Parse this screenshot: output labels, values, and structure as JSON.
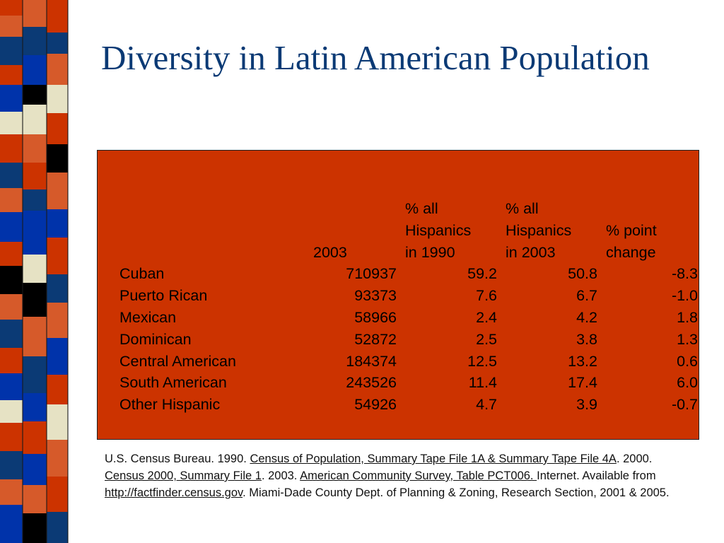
{
  "slide": {
    "title": "Diversity in Latin American Population"
  },
  "table": {
    "headers": {
      "col_2003": "2003",
      "pct1990": [
        "% all",
        "Hispanics",
        "in 1990"
      ],
      "pct2003": [
        "% all",
        "Hispanics",
        "in 2003"
      ],
      "change": [
        "% point",
        "change"
      ]
    },
    "rows": [
      {
        "group": "Cuban",
        "pop2003": "710937",
        "pct1990": "59.2",
        "pct2003": "50.8",
        "change": "-8.3"
      },
      {
        "group": "Puerto Rican",
        "pop2003": "93373",
        "pct1990": "7.6",
        "pct2003": "6.7",
        "change": "-1.0"
      },
      {
        "group": "Mexican",
        "pop2003": "58966",
        "pct1990": "2.4",
        "pct2003": "4.2",
        "change": "1.8"
      },
      {
        "group": "Dominican",
        "pop2003": "52872",
        "pct1990": "2.5",
        "pct2003": "3.8",
        "change": "1.3"
      },
      {
        "group": "Central American",
        "pop2003": "184374",
        "pct1990": "12.5",
        "pct2003": "13.2",
        "change": "0.6"
      },
      {
        "group": "South American",
        "pop2003": "243526",
        "pct1990": "11.4",
        "pct2003": "17.4",
        "change": "6.0"
      },
      {
        "group": "Other Hispanic",
        "pop2003": "54926",
        "pct1990": "4.7",
        "pct2003": "3.9",
        "change": "-0.7"
      }
    ]
  },
  "source": {
    "t1": "U.S. Census Bureau. 1990. ",
    "link1": "Census of Population, Summary Tape File 1A & Summary Tape File 4A",
    "t2": ". 2000. ",
    "link2": "Census 2000, Summary File 1",
    "t3": ". 2003. ",
    "link3": "American Community Survey, Table PCT006. ",
    "t4": "Internet. Available from ",
    "link4": "http://factfinder.census.gov",
    "t5": ". Miami-Dade County Dept. of Planning & Zoning, Research Section, 2001 & 2005."
  },
  "colors": {
    "title": "#0b3a75",
    "table_bg": "#cc3300",
    "stripe_palette": [
      "#cc3300",
      "#0b3a75",
      "#0033aa",
      "#000000",
      "#e6e2c4",
      "#d65a2a"
    ]
  }
}
